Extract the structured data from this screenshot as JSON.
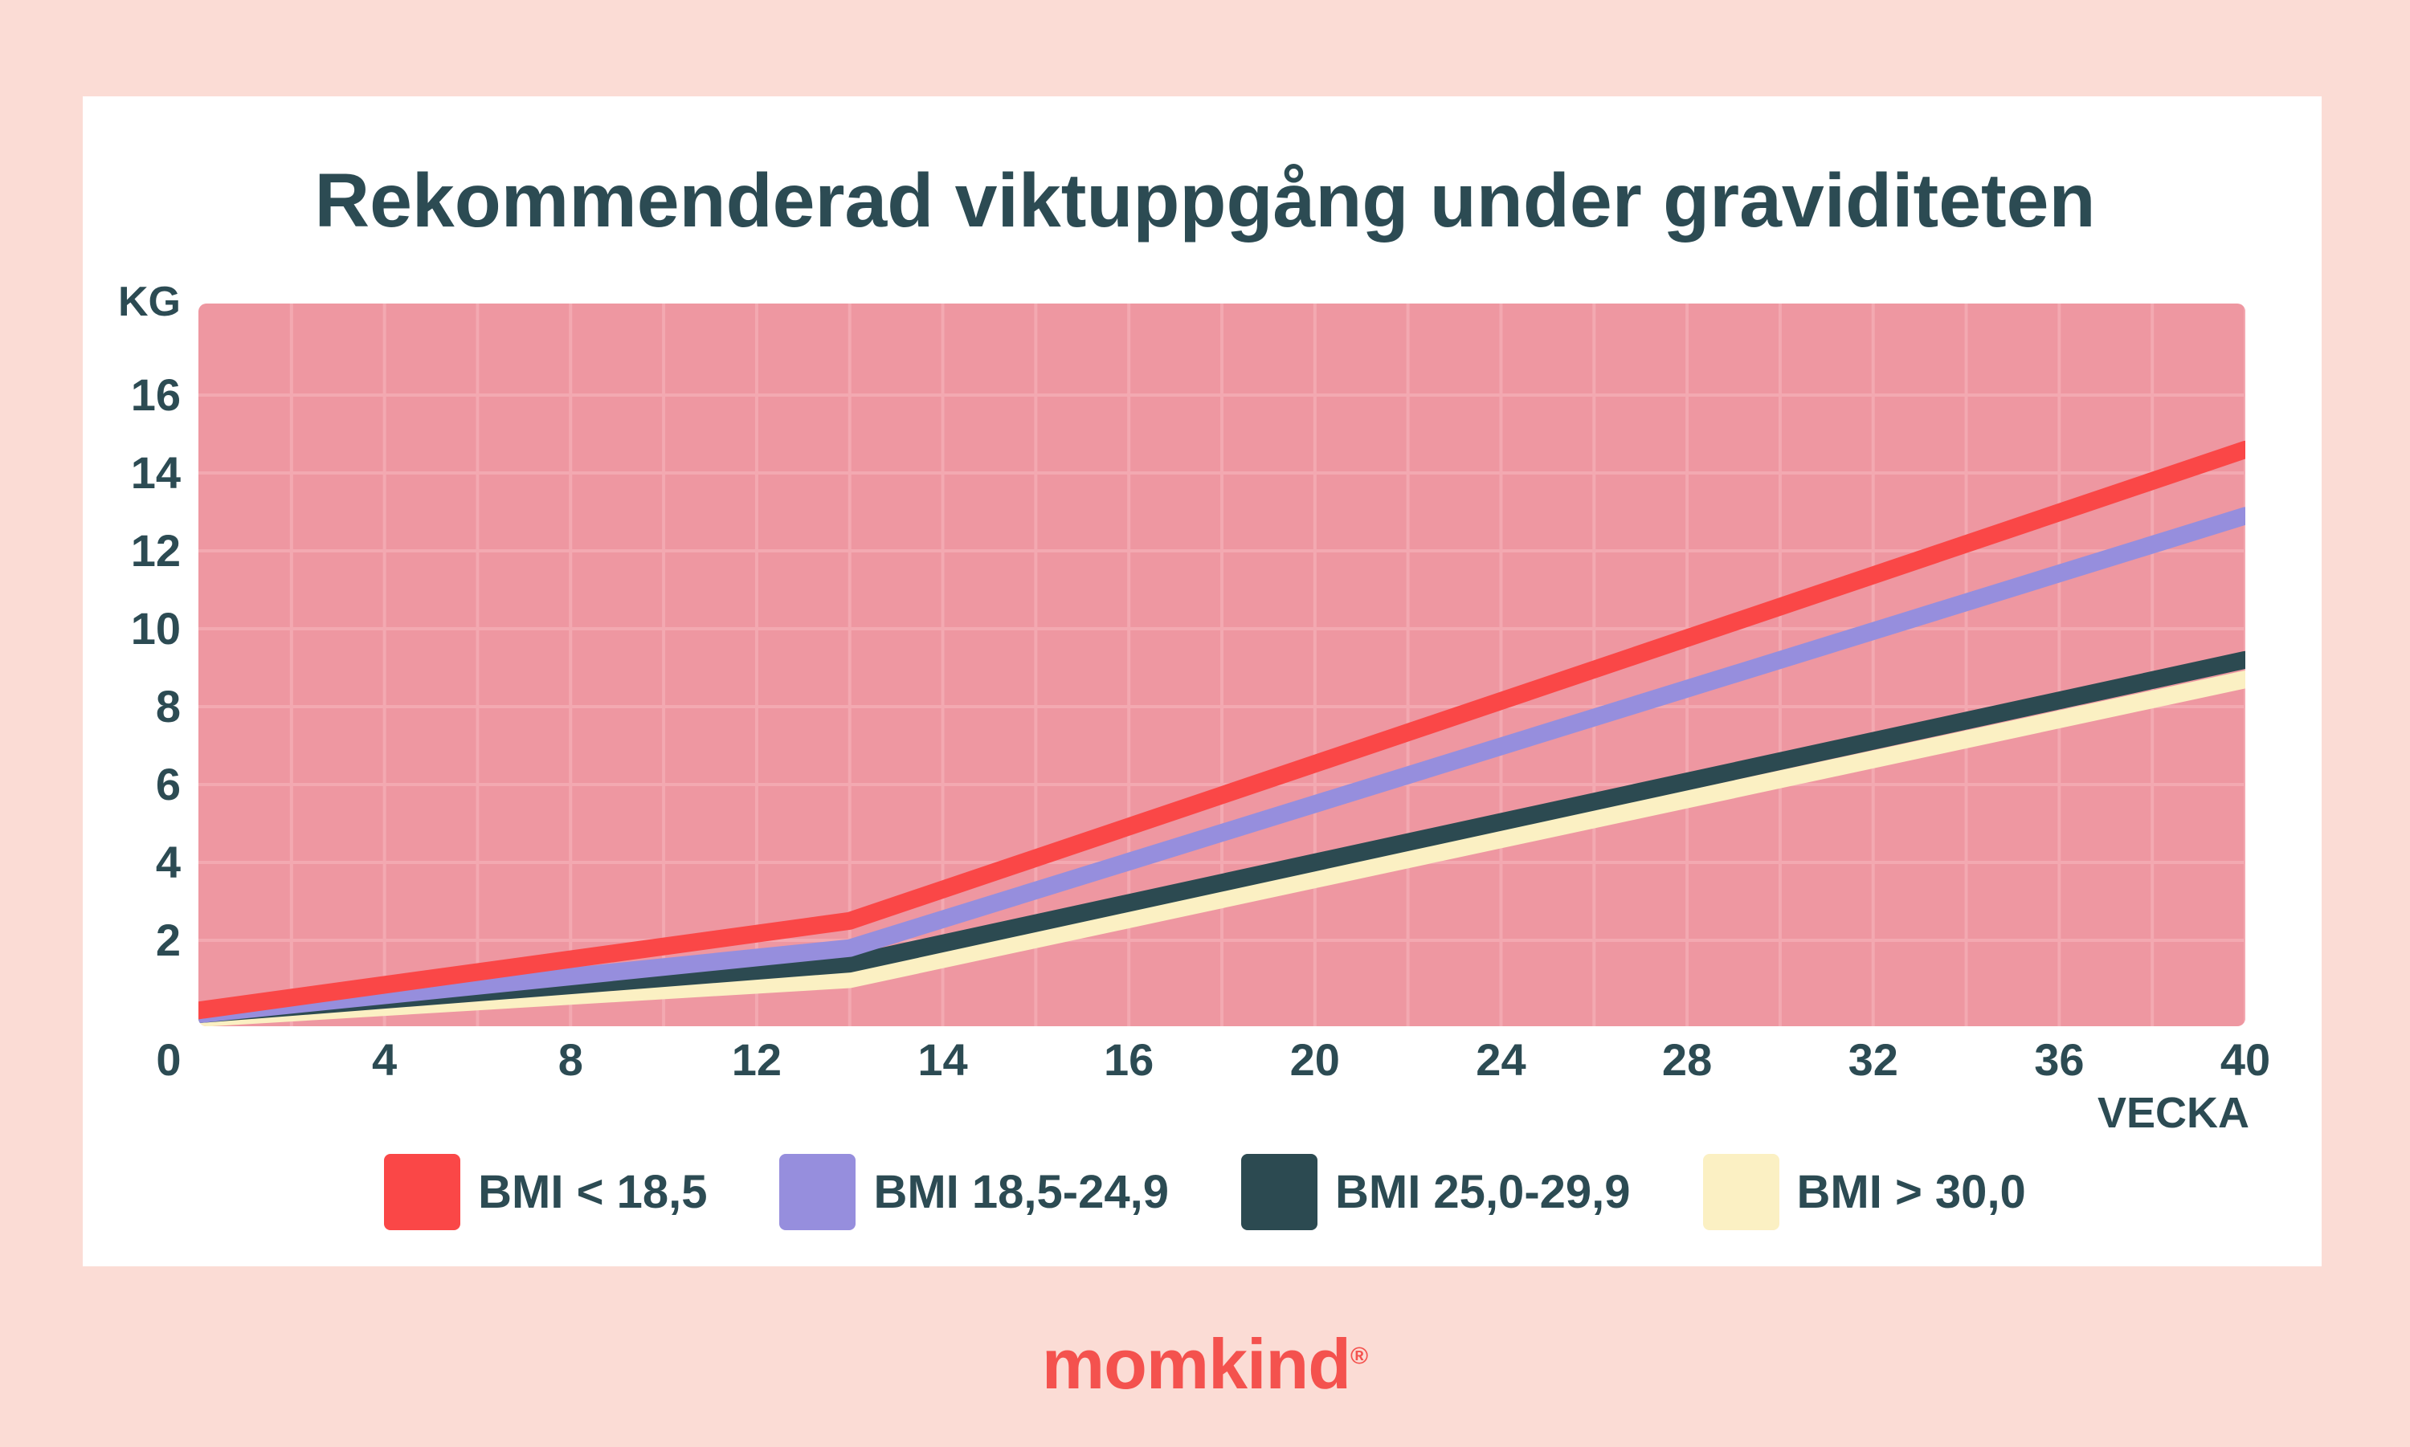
{
  "page": {
    "background_color": "#fbdcd5",
    "card_color": "#ffffff",
    "text_color": "#2c4b53"
  },
  "title": "Rekommenderad viktuppgång under graviditeten",
  "axis": {
    "y_unit_label": "KG",
    "x_unit_label": "VECKA"
  },
  "logo": {
    "text": "momkind",
    "registered_mark": "®",
    "color": "#f4524e"
  },
  "chart_data": {
    "type": "line",
    "title": "Rekommenderad viktuppgång under graviditeten",
    "xlabel": "VECKA",
    "ylabel": "KG",
    "x_ticks": [
      0,
      4,
      8,
      12,
      14,
      16,
      20,
      24,
      28,
      32,
      36,
      40
    ],
    "x_tick_spacing": "categorical – equal pixel gap between consecutive listed ticks",
    "y_ticks": [
      2,
      4,
      6,
      8,
      10,
      12,
      14,
      16
    ],
    "ylim": [
      0,
      18.3
    ],
    "grid": {
      "horizontal": "every 2 kg",
      "vertical": "every half tick interval",
      "color": "#f3a9b1"
    },
    "plot_background": "#ee97a1",
    "series": [
      {
        "name": "BMI < 18,5",
        "color": "#fa4747",
        "points": [
          {
            "week": 0,
            "kg": 0.2
          },
          {
            "week": 13,
            "kg": 2.5
          },
          {
            "week": 40,
            "kg": 14.6
          }
        ]
      },
      {
        "name": "BMI 18,5-24,9",
        "color": "#968edd",
        "points": [
          {
            "week": 0,
            "kg": 0.1
          },
          {
            "week": 13,
            "kg": 1.8
          },
          {
            "week": 40,
            "kg": 12.9
          }
        ]
      },
      {
        "name": "BMI 25,0-29,9",
        "color": "#2c4a51",
        "points": [
          {
            "week": 0,
            "kg": 0.1
          },
          {
            "week": 13,
            "kg": 1.4
          },
          {
            "week": 40,
            "kg": 9.2
          }
        ]
      },
      {
        "name": "BMI > 30,0",
        "color": "#fbf0c3",
        "points": [
          {
            "week": 0,
            "kg": 0.0
          },
          {
            "week": 13,
            "kg": 1.0
          },
          {
            "week": 40,
            "kg": 8.7
          }
        ]
      }
    ],
    "legend": {
      "position": "bottom",
      "entries": [
        "BMI < 18,5",
        "BMI 18,5-24,9",
        "BMI 25,0-29,9",
        "BMI > 30,0"
      ]
    }
  }
}
